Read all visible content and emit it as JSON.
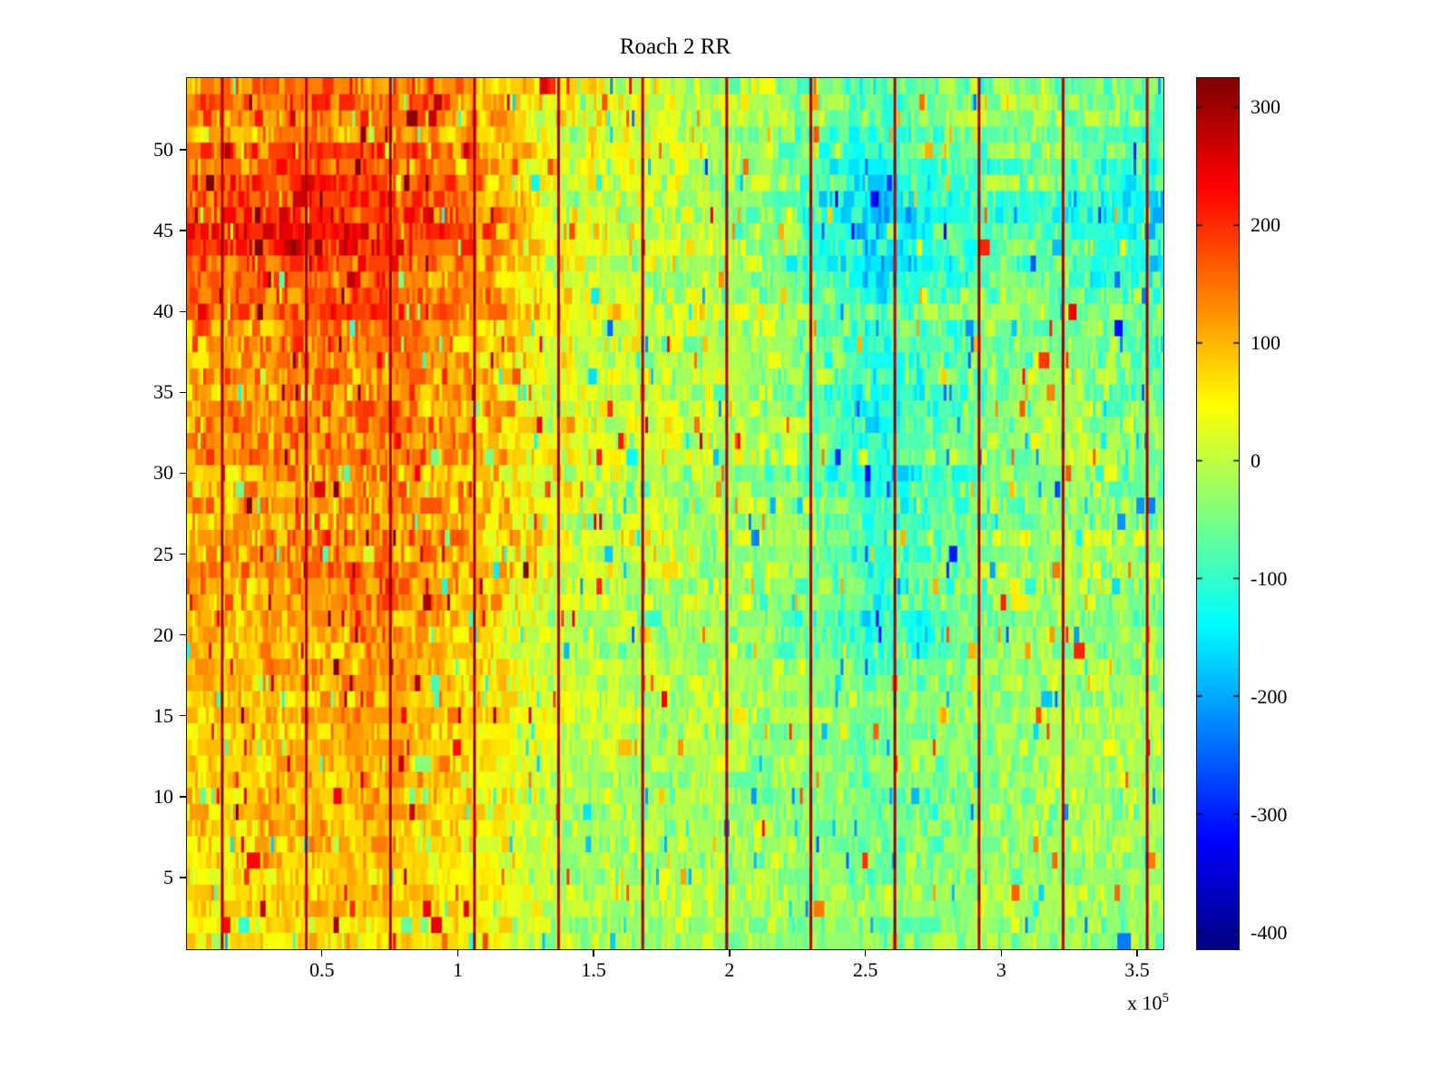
{
  "figure": {
    "title": "Roach 2 RR",
    "x_multiplier_prefix": "x 10",
    "x_multiplier_exponent": "5"
  },
  "chart_data": {
    "type": "heatmap",
    "title": "Roach 2 RR",
    "colormap": "jet",
    "colorbar_position": "right",
    "x_range": [
      0,
      360000
    ],
    "x_ticks": [
      50000,
      100000,
      150000,
      200000,
      250000,
      300000,
      350000
    ],
    "x_tick_labels": [
      "0.5",
      "1",
      "1.5",
      "2",
      "2.5",
      "3",
      "3.5"
    ],
    "x_axis_multiplier": "x 10^5",
    "y_range": [
      0.5,
      54.5
    ],
    "y_ticks": [
      5,
      10,
      15,
      20,
      25,
      30,
      35,
      40,
      45,
      50
    ],
    "y_tick_labels": [
      "5",
      "10",
      "15",
      "20",
      "25",
      "30",
      "35",
      "40",
      "45",
      "50"
    ],
    "color_range": [
      -415,
      325
    ],
    "colorbar_ticks": [
      300,
      200,
      100,
      0,
      -100,
      -200,
      -300,
      -400
    ],
    "colorbar_tick_labels": [
      "300",
      "200",
      "100",
      "0",
      "-100",
      "-200",
      "-300",
      "-400"
    ],
    "vertical_line_x": [
      13000,
      44000,
      75000,
      106000,
      137000,
      168000,
      199000,
      230000,
      261000,
      292000,
      323000,
      354000
    ],
    "vertical_line_value": 315,
    "base_grid": {
      "rows_top_to_bottom": true,
      "cols_left_to_right": true,
      "values": [
        [
          120,
          150,
          135,
          110,
          30,
          10,
          -10,
          -40,
          -80,
          -60,
          -30,
          -60
        ],
        [
          200,
          230,
          215,
          155,
          50,
          20,
          -10,
          -70,
          -190,
          -90,
          -60,
          -150
        ],
        [
          130,
          150,
          155,
          120,
          35,
          5,
          -5,
          -35,
          -90,
          -55,
          -30,
          -55
        ],
        [
          115,
          135,
          145,
          95,
          20,
          0,
          -10,
          -45,
          -135,
          -60,
          -30,
          -45
        ],
        [
          105,
          125,
          135,
          95,
          25,
          5,
          -5,
          -35,
          -95,
          -55,
          -25,
          -35
        ],
        [
          100,
          135,
          145,
          100,
          15,
          -5,
          -10,
          -40,
          -110,
          -50,
          -20,
          -30
        ],
        [
          75,
          95,
          105,
          70,
          5,
          -15,
          -15,
          -30,
          -50,
          -40,
          -20,
          -20
        ],
        [
          85,
          105,
          110,
          60,
          -5,
          -20,
          -20,
          -30,
          -50,
          -40,
          -20,
          -20
        ],
        [
          60,
          75,
          85,
          50,
          -5,
          -15,
          -10,
          -25,
          -40,
          -30,
          -15,
          -20
        ]
      ]
    },
    "noise": {
      "cell_amplitude": 90,
      "row_amplitude": 20,
      "spike_probability": 0.05,
      "spike_amplitude": 120,
      "run_repeat_probability": 0.35
    },
    "render_grid": {
      "cols": 360,
      "rows": 54
    }
  }
}
